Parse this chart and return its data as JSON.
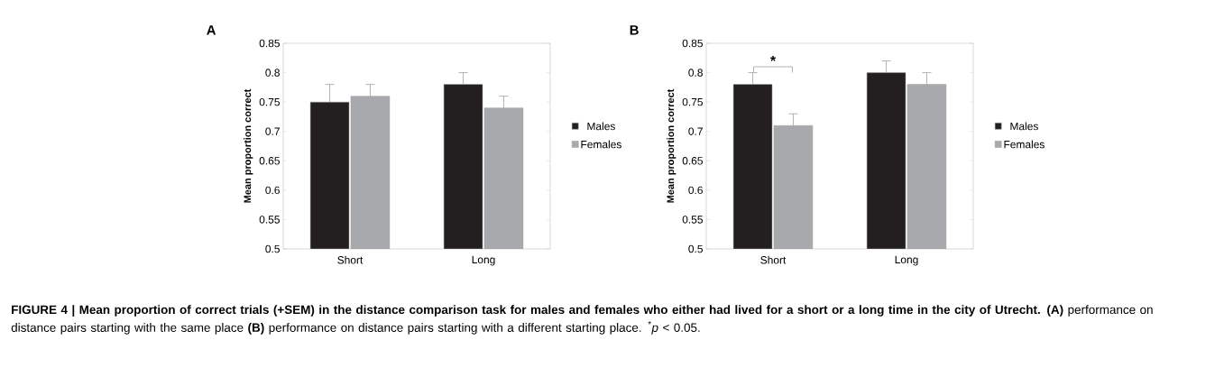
{
  "chart_data": [
    {
      "type": "bar",
      "title": "A",
      "ylabel": "Mean proportion correct",
      "categories": [
        "Short",
        "Long"
      ],
      "series": [
        {
          "name": "Males",
          "color": "#231f20",
          "values": [
            0.75,
            0.78
          ],
          "errors": [
            [
              0.75,
              0.78
            ],
            [
              0.78,
              0.8
            ]
          ]
        },
        {
          "name": "Females",
          "color": "#a7a9ac",
          "values": [
            0.76,
            0.74
          ],
          "errors": [
            [
              0.76,
              0.78
            ],
            [
              0.74,
              0.76
            ]
          ]
        }
      ],
      "ylim": [
        0.5,
        0.85
      ],
      "yticks": [
        0.5,
        0.55,
        0.6,
        0.65,
        0.7,
        0.75,
        0.8,
        0.85
      ],
      "legend": "right",
      "grid": false
    },
    {
      "type": "bar",
      "title": "B",
      "ylabel": "Mean proportion correct",
      "categories": [
        "Short",
        "Long"
      ],
      "series": [
        {
          "name": "Males",
          "color": "#231f20",
          "values": [
            0.78,
            0.8
          ],
          "errors": [
            [
              0.78,
              0.8
            ],
            [
              0.8,
              0.82
            ]
          ]
        },
        {
          "name": "Females",
          "color": "#a7a9ac",
          "values": [
            0.71,
            0.78
          ],
          "errors": [
            [
              0.71,
              0.73
            ],
            [
              0.78,
              0.8
            ]
          ]
        }
      ],
      "ylim": [
        0.5,
        0.85
      ],
      "yticks": [
        0.5,
        0.55,
        0.6,
        0.65,
        0.7,
        0.75,
        0.8,
        0.85
      ],
      "legend": "right",
      "grid": false,
      "annotations": [
        "*",
        "**FIGURE 4 | Mean proportion of correct trials (+SEM) in the distance comparison task for males and females who either had lived for a short or a long time in the city of Utrecht. (A)** performance on distance pairs starting with the same place **(B)** performance on distance pairs starting with a different starting place. $^{*}$*p* < 0.05."
      ]
    }
  ]
}
